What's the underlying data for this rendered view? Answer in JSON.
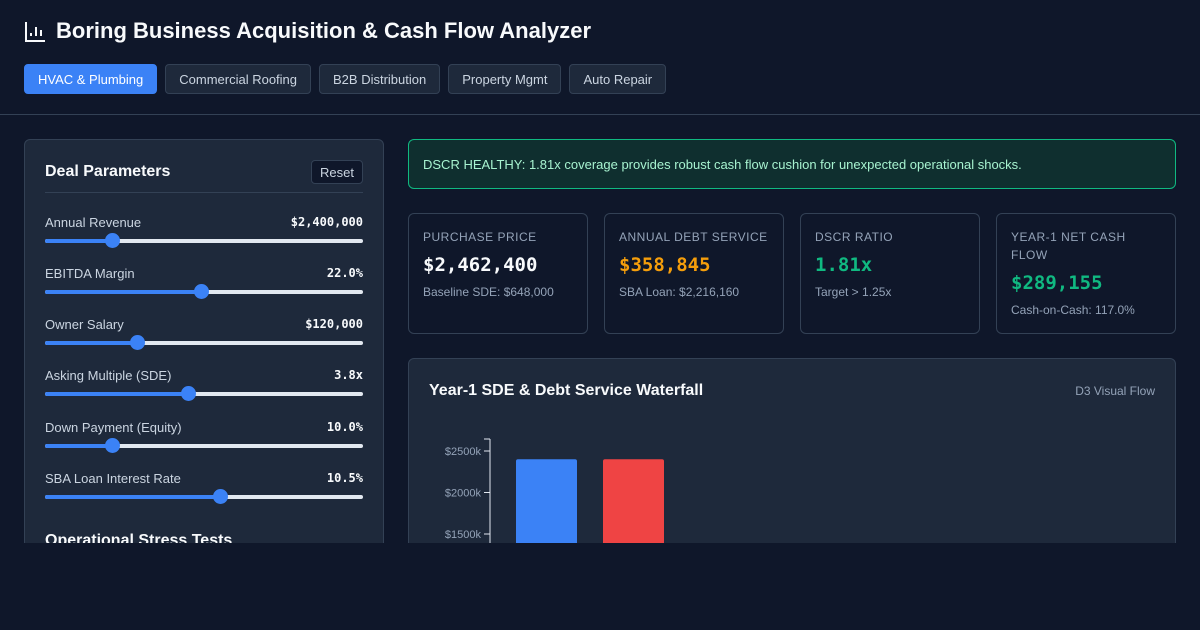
{
  "header": {
    "title": "Boring Business Acquisition & Cash Flow Analyzer",
    "icon": "bar-chart-icon",
    "tabs": [
      {
        "label": "HVAC & Plumbing",
        "active": true
      },
      {
        "label": "Commercial Roofing",
        "active": false
      },
      {
        "label": "B2B Distribution",
        "active": false
      },
      {
        "label": "Property Mgmt",
        "active": false
      },
      {
        "label": "Auto Repair",
        "active": false
      }
    ]
  },
  "params": {
    "title": "Deal Parameters",
    "reset_label": "Reset",
    "sliders": [
      {
        "label": "Annual Revenue",
        "value": "$2,400,000",
        "fraction": 0.21
      },
      {
        "label": "EBITDA Margin",
        "value": "22.0%",
        "fraction": 0.49
      },
      {
        "label": "Owner Salary",
        "value": "$120,000",
        "fraction": 0.29
      },
      {
        "label": "Asking Multiple (SDE)",
        "value": "3.8x",
        "fraction": 0.45
      },
      {
        "label": "Down Payment (Equity)",
        "value": "10.0%",
        "fraction": 0.21
      },
      {
        "label": "SBA Loan Interest Rate",
        "value": "10.5%",
        "fraction": 0.55
      }
    ],
    "stress_title": "Operational Stress Tests"
  },
  "alert": {
    "text": "DSCR HEALTHY: 1.81x coverage provides robust cash flow cushion for unexpected operational shocks.",
    "color": "#10b981"
  },
  "kpis": [
    {
      "label": "Purchase Price",
      "value": "$2,462,400",
      "sub": "Baseline SDE: $648,000",
      "color": "#f8fafc"
    },
    {
      "label": "Annual Debt Service",
      "value": "$358,845",
      "sub": "SBA Loan: $2,216,160",
      "color": "#f59e0b"
    },
    {
      "label": "DSCR Ratio",
      "value": "1.81x",
      "sub": "Target > 1.25x",
      "color": "#10b981"
    },
    {
      "label": "Year-1 Net Cash Flow",
      "value": "$289,155",
      "sub": "Cash-on-Cash: 117.0%",
      "color": "#10b981"
    }
  ],
  "chart": {
    "title": "Year-1 SDE & Debt Service Waterfall",
    "tag": "D3 Visual Flow"
  },
  "chart_data": {
    "type": "bar",
    "title": "Year-1 SDE & Debt Service Waterfall",
    "y_ticks": [
      "$2500k",
      "$2000k",
      "$1500k"
    ],
    "y_tick_values": [
      2500,
      2000,
      1500
    ],
    "ylim": [
      0,
      2700
    ],
    "series": [
      {
        "values": [
          2400
        ],
        "color": "#3b82f6"
      },
      {
        "values": [
          2400
        ],
        "color": "#ef4444"
      }
    ]
  }
}
